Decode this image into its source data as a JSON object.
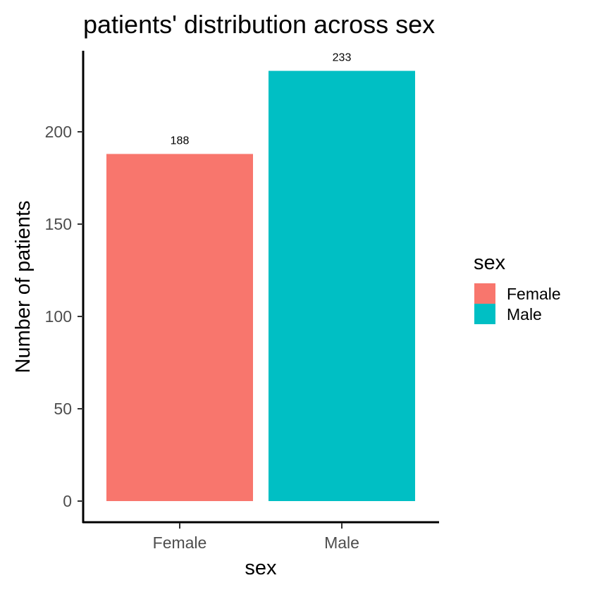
{
  "chart_data": {
    "type": "bar",
    "title": "patients' distribution across sex",
    "xlabel": "sex",
    "ylabel": "Number of patients",
    "categories": [
      "Female",
      "Male"
    ],
    "values": [
      188,
      233
    ],
    "data_labels": [
      "188",
      "233"
    ],
    "colors": [
      "#F8766D",
      "#00BFC4"
    ],
    "ylim": [
      0,
      233
    ],
    "yticks": [
      0,
      50,
      100,
      150,
      200
    ],
    "ytick_labels": [
      "0",
      "50",
      "100",
      "150",
      "200"
    ],
    "grid": false,
    "legend": {
      "title": "sex",
      "position": "right",
      "entries": [
        "Female",
        "Male"
      ]
    }
  }
}
